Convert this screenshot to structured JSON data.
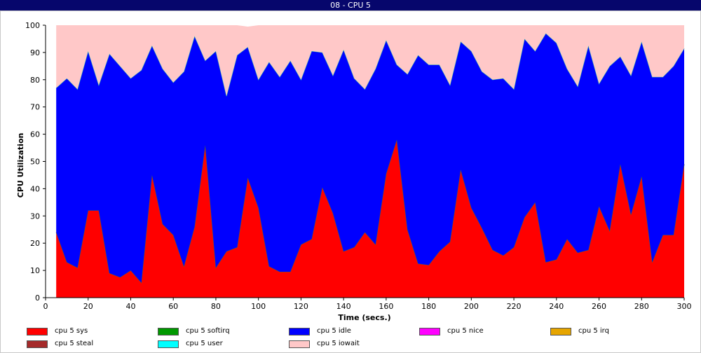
{
  "window": {
    "title": "08 - CPU 5"
  },
  "chart_data": {
    "type": "area",
    "stacked": true,
    "title": "08 - CPU 5",
    "xlabel": "Time (secs.)",
    "ylabel": "CPU Utilization",
    "xlim": [
      0,
      300
    ],
    "ylim": [
      0,
      100
    ],
    "x_ticks": [
      "0",
      "20",
      "40",
      "60",
      "80",
      "100",
      "120",
      "140",
      "160",
      "180",
      "200",
      "220",
      "240",
      "260",
      "280",
      "300"
    ],
    "y_ticks": [
      "0",
      "10",
      "20",
      "30",
      "40",
      "50",
      "60",
      "70",
      "80",
      "90",
      "100"
    ],
    "x": [
      5,
      10,
      15,
      20,
      25,
      30,
      35,
      40,
      45,
      50,
      55,
      60,
      65,
      70,
      75,
      80,
      85,
      90,
      95,
      100,
      105,
      110,
      115,
      120,
      125,
      130,
      135,
      140,
      145,
      150,
      155,
      160,
      165,
      170,
      175,
      180,
      185,
      190,
      195,
      200,
      205,
      210,
      215,
      220,
      225,
      230,
      235,
      240,
      245,
      250,
      255,
      260,
      265,
      270,
      275,
      280,
      285,
      290,
      295,
      300
    ],
    "series": [
      {
        "name": "cpu 5 sys",
        "color": "#ff0000",
        "values": [
          24,
          13,
          11,
          32,
          32,
          9,
          7.5,
          10,
          5.5,
          45,
          27,
          23,
          11.5,
          26,
          56,
          11,
          17,
          18.5,
          44,
          33,
          11.5,
          9.5,
          9.5,
          19.5,
          21.5,
          40.5,
          31,
          17,
          18.5,
          24,
          19.5,
          45.5,
          58,
          25,
          12.5,
          12,
          17,
          20.5,
          47,
          33,
          25.5,
          17.5,
          15.5,
          18.5,
          29.5,
          35,
          13,
          14,
          21.5,
          16.5,
          17.5,
          33.5,
          24.5,
          49,
          30.5,
          44.5,
          13,
          23,
          23,
          49
        ]
      },
      {
        "name": "cpu 5 softirq",
        "color": "#009900",
        "values": [
          0,
          0,
          0,
          0,
          0,
          0,
          0,
          0,
          0,
          0,
          0,
          0,
          0,
          0,
          0,
          0,
          0,
          0,
          0,
          0,
          0,
          0,
          0,
          0,
          0,
          0,
          0,
          0,
          0,
          0,
          0,
          0,
          0,
          0,
          0,
          0,
          0,
          0,
          0,
          0,
          0,
          0,
          0,
          0,
          0,
          0,
          0,
          0,
          0,
          0,
          0,
          0,
          0,
          0,
          0,
          0,
          0,
          0,
          0,
          0
        ]
      },
      {
        "name": "cpu 5 idle",
        "color": "#0000ff",
        "values": [
          53,
          67.5,
          65.5,
          58.5,
          46,
          80.5,
          77.5,
          70.5,
          78,
          47.5,
          57,
          56,
          71.5,
          70,
          31,
          79.5,
          57,
          70.5,
          48,
          47,
          75,
          71.5,
          77.5,
          60.5,
          69,
          49.5,
          50.5,
          74,
          62,
          52.5,
          64.5,
          49,
          27.5,
          57,
          76.5,
          73.5,
          68.5,
          57.5,
          47,
          57.5,
          57.5,
          62.5,
          65,
          58,
          65.5,
          55.5,
          84,
          79.5,
          62.5,
          61,
          75,
          45,
          60.5,
          39.5,
          51,
          49.5,
          68,
          58,
          62,
          42.5
        ]
      },
      {
        "name": "cpu 5 nice",
        "color": "#ff00ff",
        "values": [
          0,
          0,
          0,
          0,
          0,
          0,
          0,
          0,
          0,
          0,
          0,
          0,
          0,
          0,
          0,
          0,
          0,
          0,
          0,
          0,
          0,
          0,
          0,
          0,
          0,
          0,
          0,
          0,
          0,
          0,
          0,
          0,
          0,
          0,
          0,
          0,
          0,
          0,
          0,
          0,
          0,
          0,
          0,
          0,
          0,
          0,
          0,
          0,
          0,
          0,
          0,
          0,
          0,
          0,
          0,
          0,
          0,
          0,
          0,
          0
        ]
      },
      {
        "name": "cpu 5 irq",
        "color": "#e6a500",
        "values": [
          0,
          0,
          0,
          0,
          0,
          0,
          0,
          0,
          0,
          0,
          0,
          0,
          0,
          0,
          0,
          0,
          0,
          0,
          0,
          0,
          0,
          0,
          0,
          0,
          0,
          0,
          0,
          0,
          0,
          0,
          0,
          0,
          0,
          0,
          0,
          0,
          0,
          0,
          0,
          0,
          0,
          0,
          0,
          0,
          0,
          0,
          0,
          0,
          0,
          0,
          0,
          0,
          0,
          0,
          0,
          0,
          0,
          0,
          0,
          0
        ]
      },
      {
        "name": "cpu 5 steal",
        "color": "#a52a2a",
        "values": [
          0,
          0,
          0,
          0,
          0,
          0,
          0,
          0,
          0,
          0,
          0,
          0,
          0,
          0,
          0,
          0,
          0,
          0,
          0,
          0,
          0,
          0,
          0,
          0,
          0,
          0,
          0,
          0,
          0,
          0,
          0,
          0,
          0,
          0,
          0,
          0,
          0,
          0,
          0,
          0,
          0,
          0,
          0,
          0,
          0,
          0,
          0,
          0,
          0,
          0,
          0,
          0,
          0,
          0,
          0,
          0,
          0,
          0,
          0,
          0
        ]
      },
      {
        "name": "cpu 5 user",
        "color": "#00ffff",
        "values": [
          0,
          0,
          0,
          0,
          0,
          0,
          0,
          0,
          0,
          0,
          0,
          0,
          0,
          0,
          0,
          0,
          0,
          0,
          0,
          0,
          0,
          0,
          0,
          0,
          0,
          0,
          0,
          0,
          0,
          0,
          0,
          0,
          0,
          0,
          0,
          0,
          0,
          0,
          0,
          0,
          0,
          0,
          0,
          0,
          0,
          0,
          0,
          0,
          0,
          0,
          0,
          0,
          0,
          0,
          0,
          0,
          0,
          0,
          0,
          0
        ]
      },
      {
        "name": "cpu 5 iowait",
        "color": "#ffc8c8",
        "values": [
          23,
          19.5,
          23.5,
          9.5,
          22,
          10.5,
          15,
          19.5,
          16.5,
          7.5,
          16,
          21,
          17,
          4,
          13,
          9.5,
          26,
          11,
          7.5,
          20,
          13.5,
          19,
          13,
          20,
          9.5,
          10,
          18.5,
          9,
          19.5,
          23.5,
          16,
          5.5,
          14.5,
          18,
          11,
          14.5,
          14.5,
          22,
          6,
          9.5,
          17,
          20,
          19.5,
          23.5,
          5,
          9.5,
          3,
          6.5,
          16,
          22.5,
          7.5,
          21.5,
          15,
          11.5,
          18.5,
          6,
          19,
          19,
          15,
          8.5
        ]
      }
    ],
    "legend": {
      "placement": "bottom",
      "columns": 5
    }
  }
}
